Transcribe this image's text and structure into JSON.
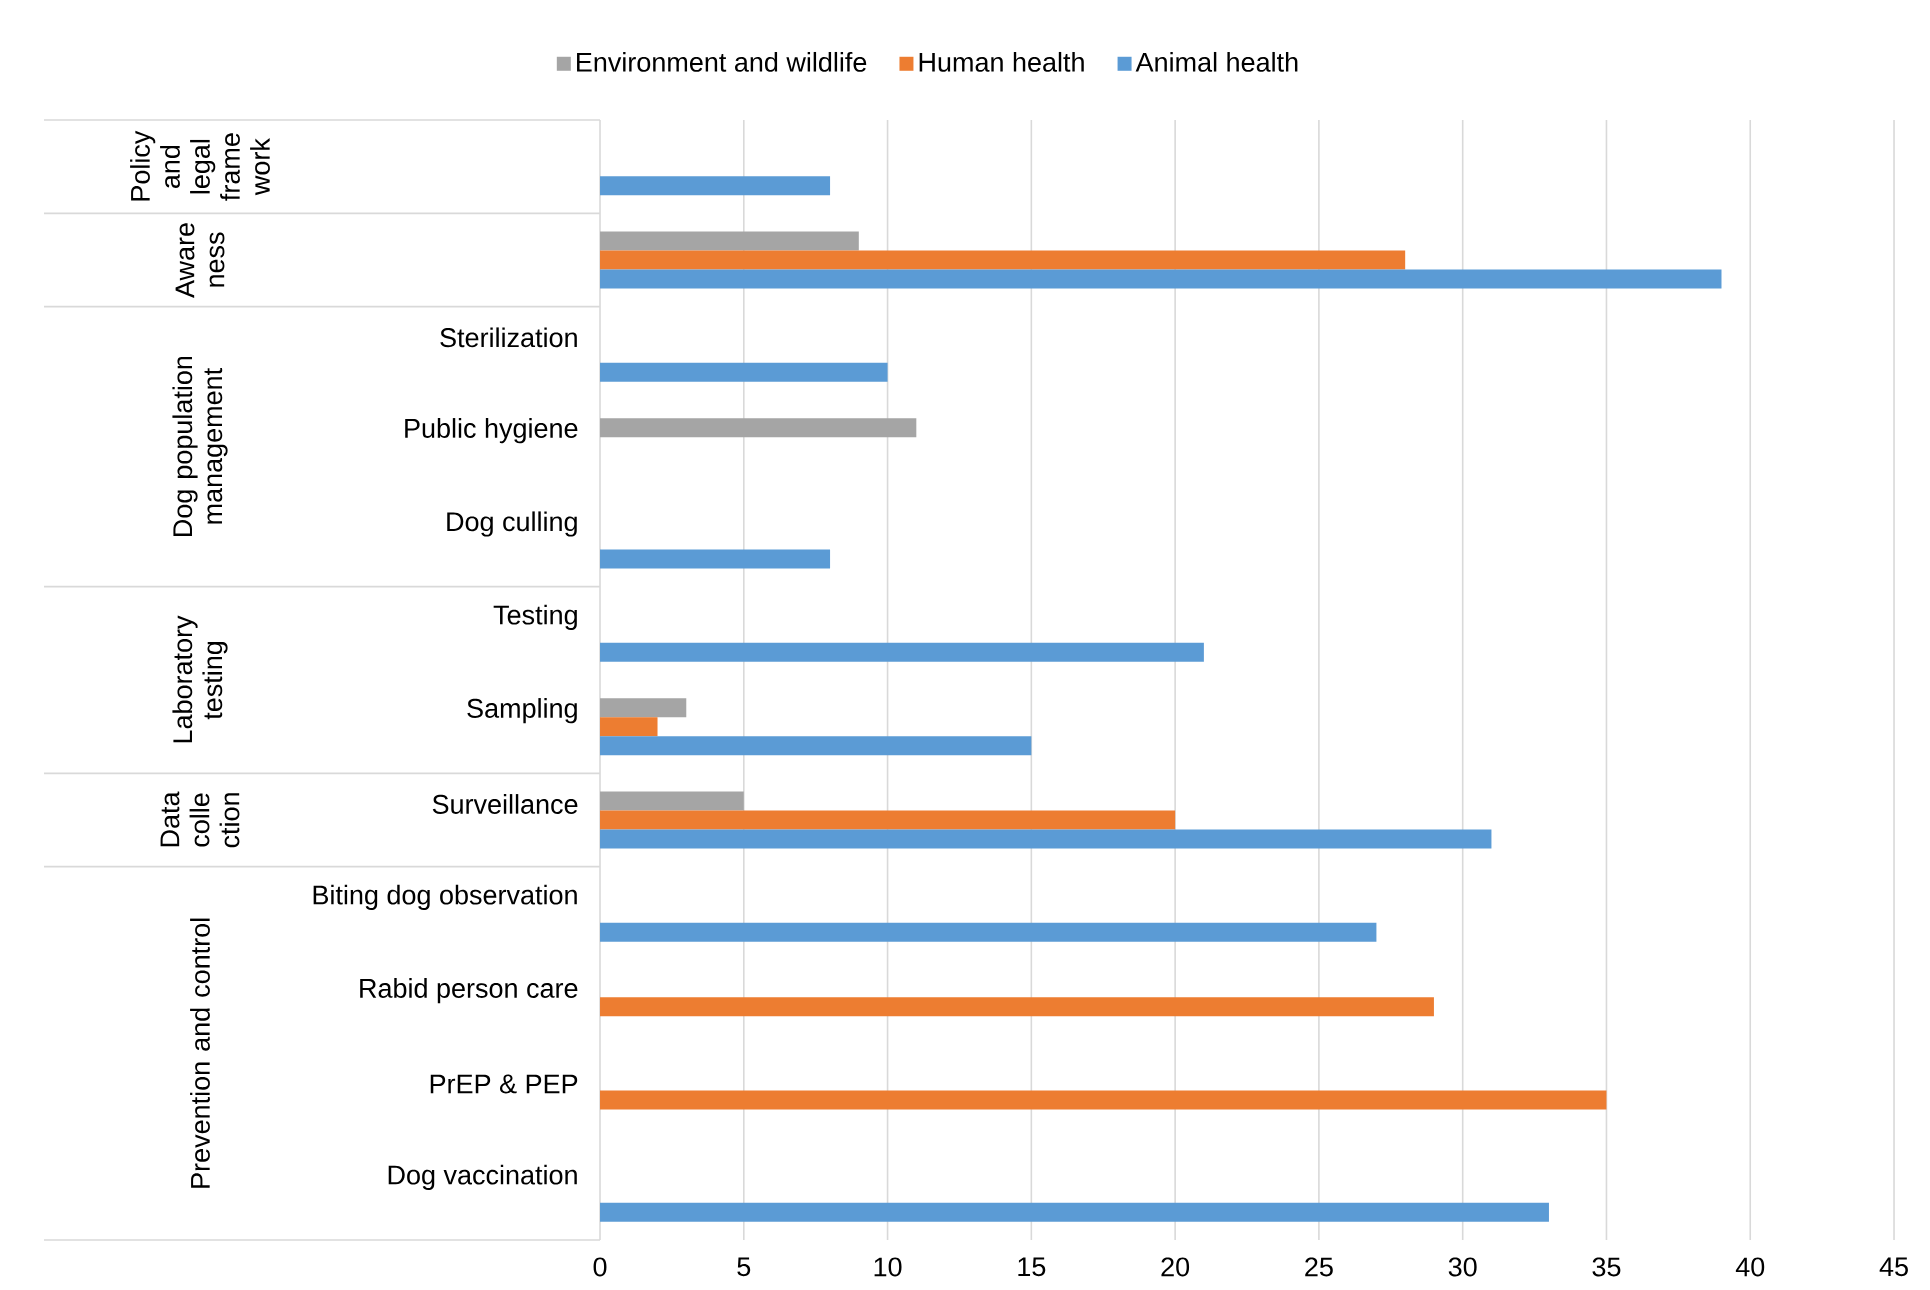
{
  "chart_data": {
    "type": "bar",
    "orientation": "horizontal",
    "categories": [
      null,
      null,
      "Sterilization",
      "Public hygiene",
      "Dog culling",
      "Testing",
      "Sampling",
      "Surveillance",
      "Biting dog observation",
      "Rabid person care",
      "PrEP & PEP",
      "Dog vaccination"
    ],
    "series": [
      {
        "name": "Environment and wildlife",
        "color": "#a5a5a5",
        "values": [
          null,
          9,
          null,
          11,
          null,
          null,
          3,
          5,
          null,
          null,
          null,
          null
        ]
      },
      {
        "name": "Human health",
        "color": "#ed7d31",
        "values": [
          null,
          28,
          null,
          null,
          null,
          null,
          2,
          20,
          null,
          29,
          35,
          null
        ]
      },
      {
        "name": "Animal health",
        "color": "#5b9bd5",
        "values": [
          8,
          39,
          10,
          null,
          8,
          21,
          15,
          31,
          27,
          null,
          null,
          33
        ]
      }
    ],
    "annotations": [
      "Policy and legal frame work",
      "Aware ness",
      "Dog population management",
      "Laboratory testing",
      "Data colle ction",
      "Prevention and control"
    ],
    "xlim": [
      0,
      45
    ],
    "xticks": [
      0,
      5,
      10,
      15,
      20,
      25,
      30,
      35,
      40,
      45
    ],
    "grid": "x",
    "legend": "top"
  }
}
